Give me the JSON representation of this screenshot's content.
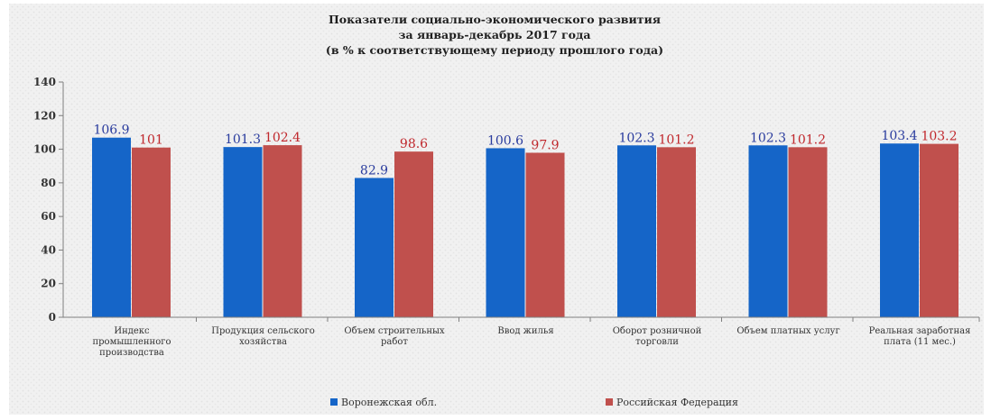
{
  "chart_data": {
    "type": "bar",
    "title": [
      "Показатели социально-экономического развития",
      "за январь-декабрь 2017 года",
      "(в % к соответствующему периоду прошлого года)"
    ],
    "categories": [
      [
        "Индекс",
        "промышленного",
        "производства"
      ],
      [
        "Продукция сельского",
        "хозяйства"
      ],
      [
        "Объем строительных",
        "работ"
      ],
      [
        "Ввод жилья"
      ],
      [
        "Оборот розничной",
        "торговли"
      ],
      [
        "Объем платных услуг"
      ],
      [
        "Реальная заработная",
        "плата (11 мес.)"
      ]
    ],
    "series": [
      {
        "name": "Воронежская обл.",
        "values": [
          106.9,
          101.3,
          82.9,
          100.6,
          102.3,
          102.3,
          103.4
        ],
        "labels": [
          "106.9",
          "101.3",
          "82.9",
          "100.6",
          "102.3",
          "102.3",
          "103.4"
        ],
        "color": "#1565c8",
        "label_color": "#2a3c9e"
      },
      {
        "name": "Российская Федерация",
        "values": [
          101,
          102.4,
          98.6,
          97.9,
          101.2,
          101.2,
          103.2
        ],
        "labels": [
          "101",
          "102.4",
          "98.6",
          "97.9",
          "101.2",
          "101.2",
          "103.2"
        ],
        "color": "#c0504d",
        "label_color": "#c0282d"
      }
    ],
    "y_ticks": [
      "0",
      "20",
      "40",
      "60",
      "80",
      "100",
      "120",
      "140"
    ],
    "ylim": [
      0,
      140
    ],
    "grid": false,
    "legend_position": "bottom",
    "background_color": "#f2f2f2"
  }
}
